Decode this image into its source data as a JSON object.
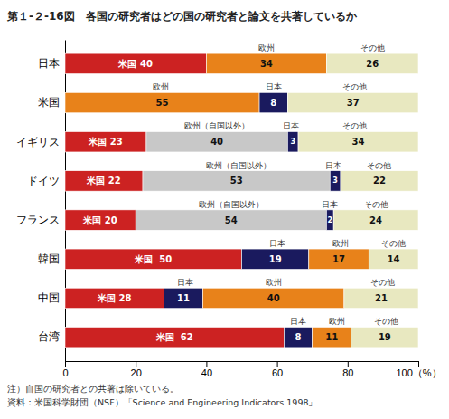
{
  "chart_data": {
    "type": "bar",
    "orientation": "horizontal",
    "stacked": true,
    "data_labels": true,
    "title": "第１-２-16図　各国の研究者はどの国の研究者と論文を共著しているか",
    "categories": [
      "日本",
      "米国",
      "イギリス",
      "ドイツ",
      "フランス",
      "韓国",
      "中国",
      "台湾"
    ],
    "bars": [
      {
        "segments": [
          {
            "value": 40,
            "color": "#cc2222",
            "value_label": "米国 40"
          },
          {
            "value": 34,
            "color": "#e8821a",
            "value_label": "34"
          },
          {
            "value": 26,
            "color": "#e8e8c0",
            "value_label": "26"
          }
        ],
        "annotations": [
          {
            "text": "欧州",
            "x": 57
          },
          {
            "text": "その他",
            "x": 87
          }
        ]
      },
      {
        "segments": [
          {
            "value": 55,
            "color": "#e8821a",
            "value_label": "55"
          },
          {
            "value": 8,
            "color": "#1a1a5e",
            "value_label": "8"
          },
          {
            "value": 37,
            "color": "#e8e8c0",
            "value_label": "37"
          }
        ],
        "annotations": [
          {
            "text": "欧州",
            "x": 27
          },
          {
            "text": "日本",
            "x": 59
          },
          {
            "text": "その他",
            "x": 82
          }
        ]
      },
      {
        "segments": [
          {
            "value": 23,
            "color": "#cc2222",
            "value_label": "米国 23"
          },
          {
            "value": 40,
            "color": "#c8c8c8",
            "value_label": "40"
          },
          {
            "value": 3,
            "color": "#1a1a5e",
            "value_label": "3"
          },
          {
            "value": 34,
            "color": "#e8e8c0",
            "value_label": "34"
          }
        ],
        "annotations": [
          {
            "text": "欧州（自国以外）",
            "x": 43
          },
          {
            "text": "日本",
            "x": 64
          },
          {
            "text": "その他",
            "x": 82
          }
        ]
      },
      {
        "segments": [
          {
            "value": 22,
            "color": "#cc2222",
            "value_label": "米国 22"
          },
          {
            "value": 53,
            "color": "#c8c8c8",
            "value_label": "53"
          },
          {
            "value": 3,
            "color": "#1a1a5e",
            "value_label": "3"
          },
          {
            "value": 22,
            "color": "#e8e8c0",
            "value_label": "22"
          }
        ],
        "annotations": [
          {
            "text": "欧州（自国以外）",
            "x": 49
          },
          {
            "text": "日本",
            "x": 76
          },
          {
            "text": "その他",
            "x": 89
          }
        ]
      },
      {
        "segments": [
          {
            "value": 20,
            "color": "#cc2222",
            "value_label": "米国 20"
          },
          {
            "value": 54,
            "color": "#c8c8c8",
            "value_label": "54"
          },
          {
            "value": 2,
            "color": "#1a1a5e",
            "value_label": "2"
          },
          {
            "value": 24,
            "color": "#e8e8c0",
            "value_label": "24"
          }
        ],
        "annotations": [
          {
            "text": "欧州（自国以外）",
            "x": 47
          },
          {
            "text": "日本",
            "x": 75
          },
          {
            "text": "その他",
            "x": 88
          }
        ]
      },
      {
        "segments": [
          {
            "value": 50,
            "color": "#cc2222",
            "value_label": "米国  50"
          },
          {
            "value": 19,
            "color": "#1a1a5e",
            "value_label": "19"
          },
          {
            "value": 17,
            "color": "#e8821a",
            "value_label": "17"
          },
          {
            "value": 14,
            "color": "#e8e8c0",
            "value_label": "14"
          }
        ],
        "annotations": [
          {
            "text": "日本",
            "x": 60
          },
          {
            "text": "欧州",
            "x": 78
          },
          {
            "text": "その他",
            "x": 93
          }
        ]
      },
      {
        "segments": [
          {
            "value": 28,
            "color": "#cc2222",
            "value_label": "米国 28"
          },
          {
            "value": 11,
            "color": "#1a1a5e",
            "value_label": "11"
          },
          {
            "value": 40,
            "color": "#e8821a",
            "value_label": "40"
          },
          {
            "value": 21,
            "color": "#e8e8c0",
            "value_label": "21"
          }
        ],
        "annotations": [
          {
            "text": "日本",
            "x": 34
          },
          {
            "text": "欧州",
            "x": 59
          },
          {
            "text": "その他",
            "x": 90
          }
        ]
      },
      {
        "segments": [
          {
            "value": 62,
            "color": "#cc2222",
            "value_label": "米国  62"
          },
          {
            "value": 8,
            "color": "#1a1a5e",
            "value_label": "8"
          },
          {
            "value": 11,
            "color": "#e8821a",
            "value_label": "11"
          },
          {
            "value": 19,
            "color": "#e8e8c0",
            "value_label": "19"
          }
        ],
        "annotations": [
          {
            "text": "日本",
            "x": 66
          },
          {
            "text": "欧州",
            "x": 77
          },
          {
            "text": "その他",
            "x": 91
          }
        ]
      }
    ],
    "xlim": [
      0,
      100
    ],
    "xticks": [
      0,
      20,
      40,
      60,
      80,
      {
        "value": 100,
        "label": "100（%）"
      }
    ],
    "notes": [
      "注）自国の研究者との共著は除いている。",
      "資料：米国科学財団（NSF）「Science and Engineering Indicators 1998」"
    ]
  }
}
